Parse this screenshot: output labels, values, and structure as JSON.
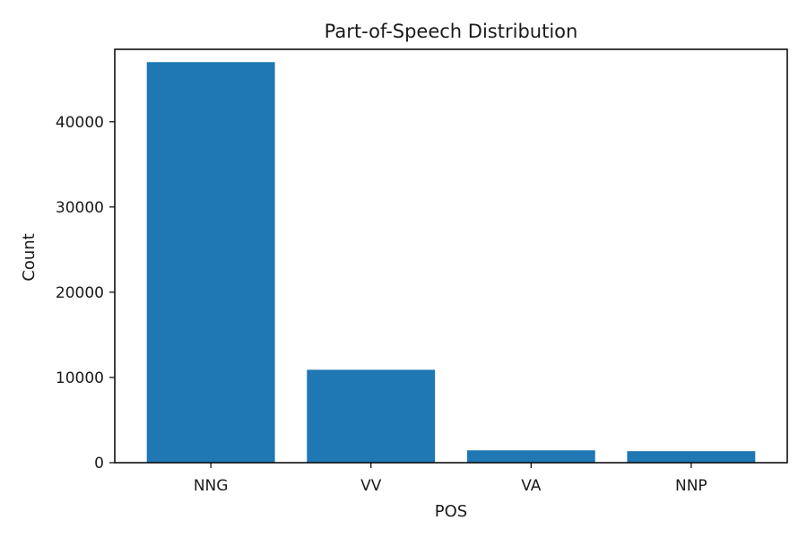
{
  "chart_data": {
    "type": "bar",
    "title": "Part-of-Speech Distribution",
    "xlabel": "POS",
    "ylabel": "Count",
    "categories": [
      "NNG",
      "VV",
      "VA",
      "NNP"
    ],
    "values": [
      47000,
      10900,
      1450,
      1350
    ],
    "ylim": [
      0,
      48500
    ],
    "yticks": [
      0,
      10000,
      20000,
      30000,
      40000
    ],
    "ytick_labels": [
      "0",
      "10000",
      "20000",
      "30000",
      "40000"
    ],
    "bar_color": "#1f77b4",
    "grid": false
  }
}
